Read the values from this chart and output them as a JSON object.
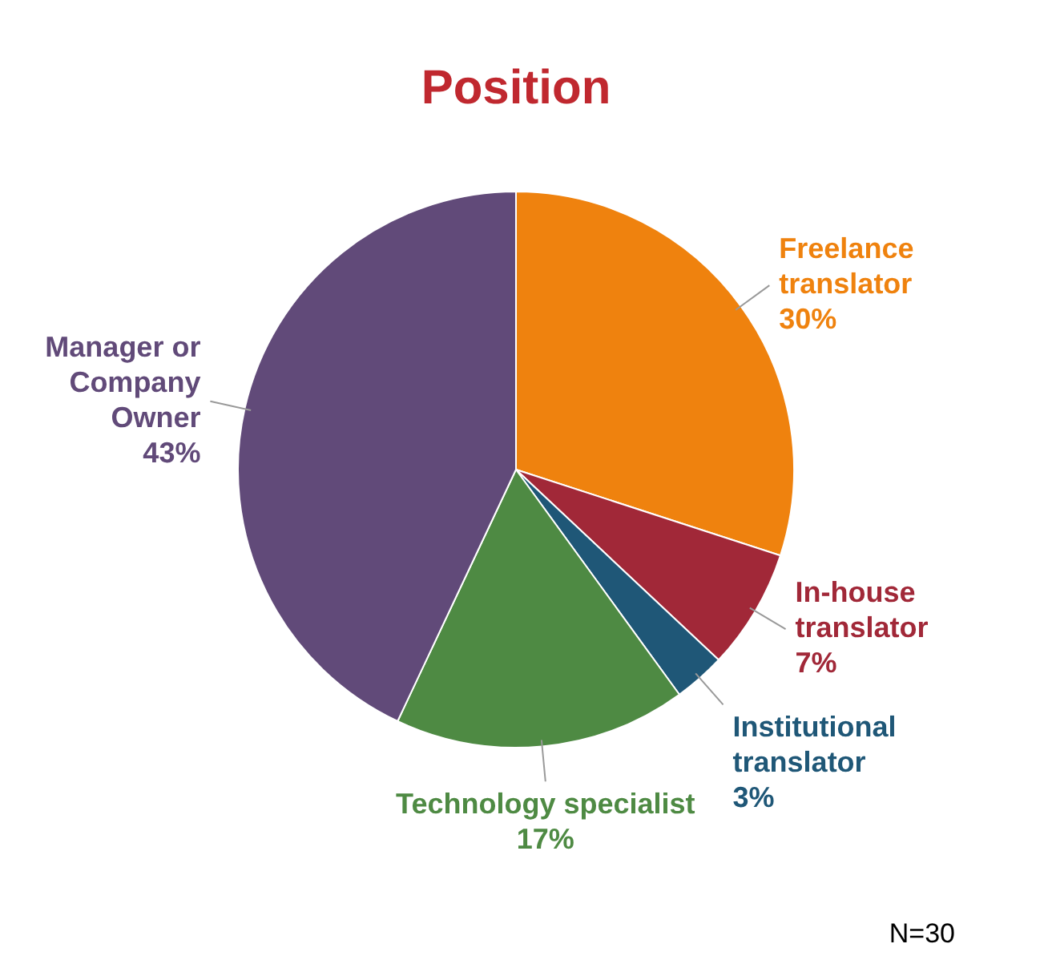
{
  "chart_data": {
    "type": "pie",
    "title": "Position",
    "categories": [
      "Freelance translator",
      "In-house translator",
      "Institutional translator",
      "Technology specialist",
      "Manager or Company Owner"
    ],
    "values": [
      30,
      7,
      3,
      17,
      43
    ],
    "value_labels": [
      "30%",
      "7%",
      "3%",
      "17%",
      "43%"
    ],
    "colors": [
      "#ef820e",
      "#a12838",
      "#1f5777",
      "#4e8a43",
      "#614a79"
    ],
    "legend": false,
    "annotations": [
      "N=30"
    ]
  }
}
